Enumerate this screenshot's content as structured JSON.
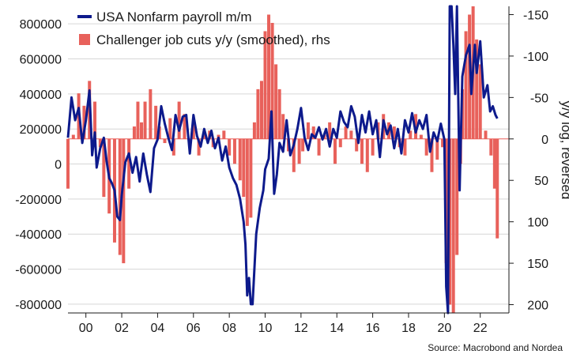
{
  "chart_data": {
    "type": "bar+line",
    "source": "Source: Macrobond and Nordea",
    "legend": {
      "placement": "top-left",
      "entries": [
        {
          "label": "USA Nonfarm payroll m/m",
          "kind": "line",
          "color": "#0d1a8c"
        },
        {
          "label": "Challenger job cuts y/y (smoothed), rhs",
          "kind": "bar",
          "color": "#e8615b"
        }
      ]
    },
    "x_axis": {
      "range": [
        1999.0,
        2023.6
      ],
      "ticks": [
        2000,
        2002,
        2004,
        2006,
        2008,
        2010,
        2012,
        2014,
        2016,
        2018,
        2020,
        2022
      ],
      "tick_labels": [
        "00",
        "02",
        "04",
        "06",
        "08",
        "10",
        "12",
        "14",
        "16",
        "18",
        "20",
        "22"
      ]
    },
    "left_axis": {
      "range": [
        -850000,
        900000
      ],
      "ticks": [
        800000,
        600000,
        400000,
        200000,
        0,
        -200000,
        -400000,
        -600000,
        -800000
      ],
      "tick_labels": [
        "800000",
        "600000",
        "400000",
        "200000",
        "0",
        "-200000",
        "-400000",
        "-600000",
        "-800000"
      ]
    },
    "right_axis": {
      "label": "y/y log, reversed",
      "reversed": true,
      "scale": "log",
      "range": [
        -160,
        210
      ],
      "ticks": [
        -150,
        -100,
        -50,
        0,
        50,
        100,
        150,
        200
      ],
      "tick_labels": [
        "-150",
        "-100",
        "-50",
        "0",
        "50",
        "100",
        "150",
        "200"
      ]
    },
    "grid": true,
    "series": [
      {
        "name": "USA Nonfarm payroll m/m",
        "type": "line",
        "axis": "left",
        "color": "#0d1a8c",
        "points": [
          [
            1999.0,
            150000
          ],
          [
            1999.2,
            380000
          ],
          [
            1999.4,
            250000
          ],
          [
            1999.6,
            320000
          ],
          [
            1999.8,
            120000
          ],
          [
            2000.0,
            250000
          ],
          [
            2000.2,
            420000
          ],
          [
            2000.35,
            50000
          ],
          [
            2000.5,
            180000
          ],
          [
            2000.6,
            -20000
          ],
          [
            2000.8,
            90000
          ],
          [
            2001.0,
            150000
          ],
          [
            2001.15,
            20000
          ],
          [
            2001.3,
            -80000
          ],
          [
            2001.45,
            -110000
          ],
          [
            2001.6,
            -150000
          ],
          [
            2001.75,
            -300000
          ],
          [
            2001.9,
            -320000
          ],
          [
            2002.0,
            -180000
          ],
          [
            2002.2,
            10000
          ],
          [
            2002.4,
            60000
          ],
          [
            2002.6,
            -50000
          ],
          [
            2002.8,
            40000
          ],
          [
            2003.0,
            -100000
          ],
          [
            2003.2,
            60000
          ],
          [
            2003.4,
            -60000
          ],
          [
            2003.6,
            -160000
          ],
          [
            2003.8,
            90000
          ],
          [
            2004.0,
            140000
          ],
          [
            2004.2,
            330000
          ],
          [
            2004.4,
            230000
          ],
          [
            2004.6,
            150000
          ],
          [
            2004.8,
            80000
          ],
          [
            2005.0,
            280000
          ],
          [
            2005.2,
            190000
          ],
          [
            2005.4,
            270000
          ],
          [
            2005.6,
            280000
          ],
          [
            2005.8,
            60000
          ],
          [
            2006.0,
            280000
          ],
          [
            2006.2,
            160000
          ],
          [
            2006.4,
            100000
          ],
          [
            2006.6,
            200000
          ],
          [
            2006.8,
            120000
          ],
          [
            2007.0,
            190000
          ],
          [
            2007.2,
            90000
          ],
          [
            2007.4,
            150000
          ],
          [
            2007.6,
            20000
          ],
          [
            2007.8,
            100000
          ],
          [
            2008.0,
            -20000
          ],
          [
            2008.2,
            -80000
          ],
          [
            2008.4,
            -120000
          ],
          [
            2008.6,
            -200000
          ],
          [
            2008.8,
            -330000
          ],
          [
            2008.9,
            -460000
          ],
          [
            2009.0,
            -750000
          ],
          [
            2009.1,
            -650000
          ],
          [
            2009.2,
            -800000
          ],
          [
            2009.3,
            -800000
          ],
          [
            2009.5,
            -400000
          ],
          [
            2009.7,
            -250000
          ],
          [
            2009.9,
            -150000
          ],
          [
            2010.0,
            -30000
          ],
          [
            2010.2,
            30000
          ],
          [
            2010.35,
            300000
          ],
          [
            2010.5,
            -170000
          ],
          [
            2010.65,
            -60000
          ],
          [
            2010.8,
            120000
          ],
          [
            2011.0,
            70000
          ],
          [
            2011.2,
            250000
          ],
          [
            2011.4,
            50000
          ],
          [
            2011.6,
            110000
          ],
          [
            2011.8,
            200000
          ],
          [
            2012.0,
            320000
          ],
          [
            2012.2,
            150000
          ],
          [
            2012.4,
            80000
          ],
          [
            2012.6,
            170000
          ],
          [
            2012.8,
            150000
          ],
          [
            2013.0,
            210000
          ],
          [
            2013.2,
            140000
          ],
          [
            2013.4,
            200000
          ],
          [
            2013.6,
            100000
          ],
          [
            2013.8,
            200000
          ],
          [
            2014.0,
            150000
          ],
          [
            2014.2,
            300000
          ],
          [
            2014.4,
            240000
          ],
          [
            2014.6,
            210000
          ],
          [
            2014.8,
            330000
          ],
          [
            2015.0,
            270000
          ],
          [
            2015.2,
            120000
          ],
          [
            2015.4,
            280000
          ],
          [
            2015.6,
            180000
          ],
          [
            2015.8,
            300000
          ],
          [
            2016.0,
            170000
          ],
          [
            2016.2,
            250000
          ],
          [
            2016.4,
            40000
          ],
          [
            2016.6,
            250000
          ],
          [
            2016.8,
            170000
          ],
          [
            2017.0,
            220000
          ],
          [
            2017.2,
            90000
          ],
          [
            2017.4,
            200000
          ],
          [
            2017.6,
            60000
          ],
          [
            2017.8,
            250000
          ],
          [
            2018.0,
            180000
          ],
          [
            2018.2,
            290000
          ],
          [
            2018.4,
            180000
          ],
          [
            2018.6,
            250000
          ],
          [
            2018.8,
            200000
          ],
          [
            2019.0,
            280000
          ],
          [
            2019.2,
            70000
          ],
          [
            2019.4,
            180000
          ],
          [
            2019.6,
            130000
          ],
          [
            2019.8,
            230000
          ],
          [
            2020.0,
            140000
          ],
          [
            2020.1,
            -700000
          ],
          [
            2020.2,
            -850000
          ],
          [
            2020.3,
            900000
          ],
          [
            2020.4,
            900000
          ],
          [
            2020.5,
            680000
          ],
          [
            2020.6,
            400000
          ],
          [
            2020.7,
            900000
          ],
          [
            2020.85,
            -150000
          ],
          [
            2021.0,
            500000
          ],
          [
            2021.2,
            620000
          ],
          [
            2021.4,
            680000
          ],
          [
            2021.5,
            400000
          ],
          [
            2021.7,
            680000
          ],
          [
            2021.8,
            520000
          ],
          [
            2022.0,
            700000
          ],
          [
            2022.2,
            380000
          ],
          [
            2022.4,
            450000
          ],
          [
            2022.55,
            300000
          ],
          [
            2022.7,
            330000
          ],
          [
            2022.85,
            280000
          ],
          [
            2022.95,
            260000
          ]
        ]
      },
      {
        "name": "Challenger job cuts y/y (smoothed), rhs",
        "type": "bar",
        "axis": "right",
        "color": "#e8615b",
        "points": [
          [
            1999.0,
            60
          ],
          [
            1999.3,
            -5
          ],
          [
            1999.6,
            -55
          ],
          [
            1999.9,
            -40
          ],
          [
            2000.2,
            -70
          ],
          [
            2000.5,
            -45
          ],
          [
            2000.8,
            10
          ],
          [
            2001.0,
            70
          ],
          [
            2001.3,
            90
          ],
          [
            2001.6,
            125
          ],
          [
            2001.9,
            140
          ],
          [
            2002.1,
            150
          ],
          [
            2002.4,
            60
          ],
          [
            2002.7,
            -15
          ],
          [
            2002.9,
            -45
          ],
          [
            2003.1,
            -20
          ],
          [
            2003.3,
            -45
          ],
          [
            2003.6,
            -60
          ],
          [
            2003.9,
            -40
          ],
          [
            2004.1,
            -15
          ],
          [
            2004.4,
            5
          ],
          [
            2004.7,
            -25
          ],
          [
            2004.9,
            20
          ],
          [
            2005.2,
            -45
          ],
          [
            2005.5,
            -30
          ],
          [
            2005.8,
            10
          ],
          [
            2006.0,
            -20
          ],
          [
            2006.3,
            20
          ],
          [
            2006.6,
            -5
          ],
          [
            2006.9,
            -10
          ],
          [
            2007.1,
            10
          ],
          [
            2007.4,
            -5
          ],
          [
            2007.7,
            -10
          ],
          [
            2008.0,
            20
          ],
          [
            2008.3,
            30
          ],
          [
            2008.6,
            50
          ],
          [
            2008.8,
            70
          ],
          [
            2009.0,
            105
          ],
          [
            2009.2,
            95
          ],
          [
            2009.4,
            -20
          ],
          [
            2009.6,
            -60
          ],
          [
            2009.8,
            -70
          ],
          [
            2010.0,
            -130
          ],
          [
            2010.2,
            -150
          ],
          [
            2010.4,
            -140
          ],
          [
            2010.6,
            -90
          ],
          [
            2010.8,
            -60
          ],
          [
            2011.0,
            -30
          ],
          [
            2011.3,
            15
          ],
          [
            2011.6,
            40
          ],
          [
            2011.9,
            30
          ],
          [
            2012.1,
            15
          ],
          [
            2012.4,
            -20
          ],
          [
            2012.7,
            -15
          ],
          [
            2013.0,
            20
          ],
          [
            2013.3,
            -5
          ],
          [
            2013.6,
            -20
          ],
          [
            2013.9,
            30
          ],
          [
            2014.2,
            10
          ],
          [
            2014.5,
            -15
          ],
          [
            2014.8,
            -10
          ],
          [
            2015.1,
            15
          ],
          [
            2015.4,
            30
          ],
          [
            2015.7,
            40
          ],
          [
            2016.0,
            20
          ],
          [
            2016.3,
            -20
          ],
          [
            2016.6,
            -30
          ],
          [
            2016.9,
            -20
          ],
          [
            2017.2,
            -15
          ],
          [
            2017.5,
            10
          ],
          [
            2017.8,
            20
          ],
          [
            2018.1,
            -10
          ],
          [
            2018.4,
            -30
          ],
          [
            2018.7,
            -5
          ],
          [
            2019.0,
            20
          ],
          [
            2019.3,
            40
          ],
          [
            2019.6,
            25
          ],
          [
            2019.9,
            10
          ],
          [
            2020.1,
            150
          ],
          [
            2020.3,
            200
          ],
          [
            2020.5,
            210
          ],
          [
            2020.7,
            140
          ],
          [
            2020.9,
            30
          ],
          [
            2021.0,
            -60
          ],
          [
            2021.2,
            -130
          ],
          [
            2021.4,
            -150
          ],
          [
            2021.6,
            -160
          ],
          [
            2021.8,
            -120
          ],
          [
            2022.0,
            -90
          ],
          [
            2022.3,
            -10
          ],
          [
            2022.6,
            20
          ],
          [
            2022.8,
            60
          ],
          [
            2022.95,
            120
          ]
        ]
      }
    ]
  }
}
